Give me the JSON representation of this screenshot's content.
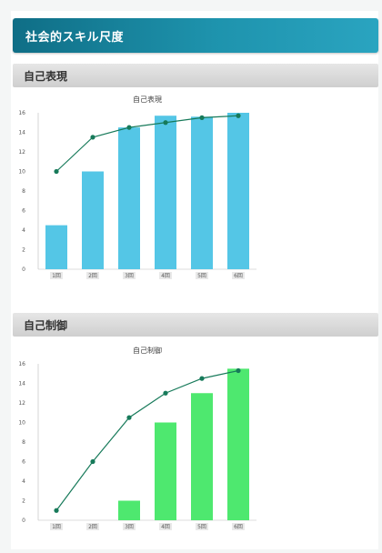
{
  "header": {
    "title": "社会的スキル尺度"
  },
  "sections": [
    {
      "label": "自己表現"
    },
    {
      "label": "自己制御"
    }
  ],
  "colors": {
    "chart1_bar": "#54c6e6",
    "chart2_bar": "#4ee86f",
    "line": "#177a5a"
  },
  "chart_data": [
    {
      "type": "bar",
      "title": "自己表現",
      "categories": [
        "1回",
        "2回",
        "3回",
        "4回",
        "5回",
        "6回"
      ],
      "series": [
        {
          "type": "bar",
          "values": [
            4.5,
            10,
            14.5,
            15.7,
            15.6,
            16
          ]
        },
        {
          "type": "line",
          "values": [
            10,
            13.5,
            14.5,
            15,
            15.5,
            15.7
          ]
        }
      ],
      "ylim": [
        0,
        16
      ],
      "yticks": [
        0,
        2,
        4,
        6,
        8,
        10,
        12,
        14,
        16
      ],
      "grid": false
    },
    {
      "type": "bar",
      "title": "自己制御",
      "categories": [
        "1回",
        "2回",
        "3回",
        "4回",
        "5回",
        "6回"
      ],
      "series": [
        {
          "type": "bar",
          "values": [
            0,
            0,
            2,
            10,
            13,
            15.5
          ]
        },
        {
          "type": "line",
          "values": [
            1,
            6,
            10.5,
            13,
            14.5,
            15.3
          ]
        }
      ],
      "ylim": [
        0,
        16
      ],
      "yticks": [
        0,
        2,
        4,
        6,
        8,
        10,
        12,
        14,
        16
      ],
      "grid": false
    }
  ]
}
